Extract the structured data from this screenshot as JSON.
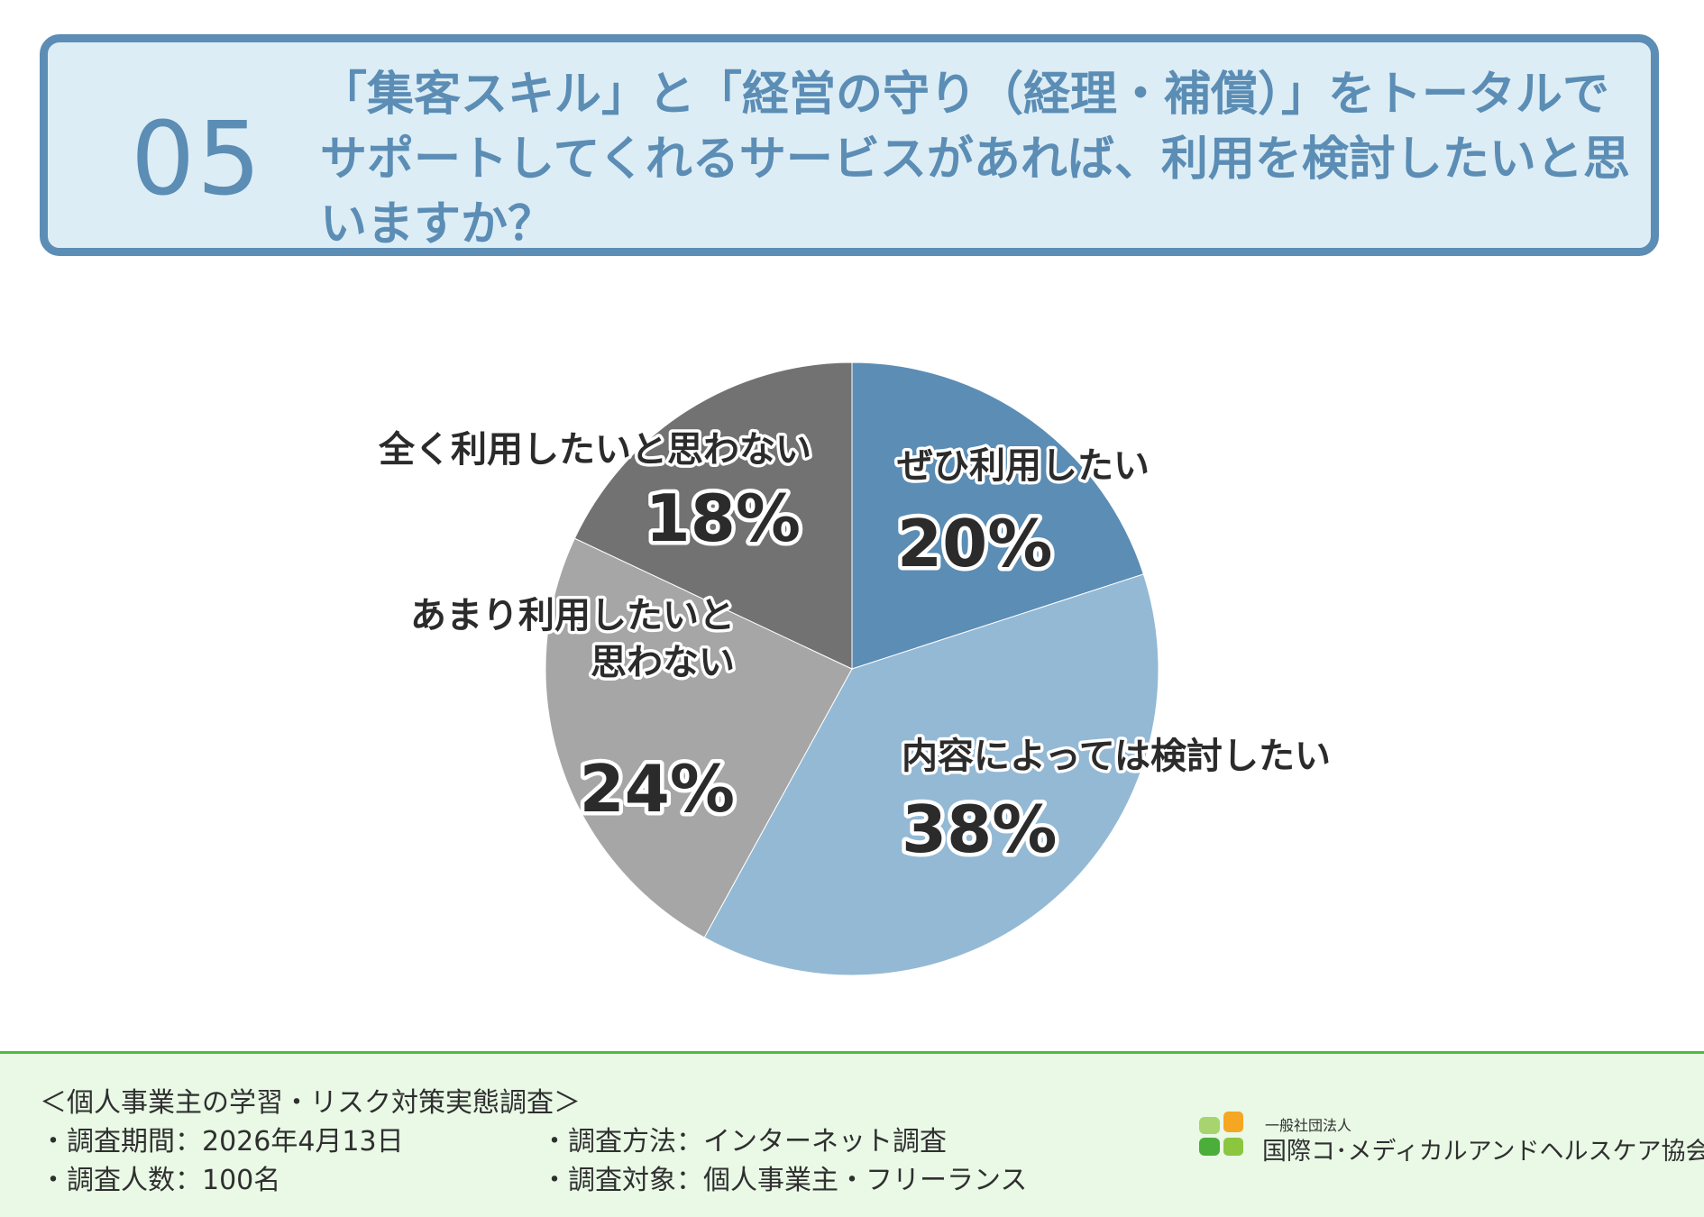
{
  "question": {
    "number": "05",
    "text": "「集客スキル」と「経営の守り（経理・補償）」をトータルでサポートしてくれるサービスがあれば、利用を検討したいと思いますか？"
  },
  "chart_data": {
    "type": "pie",
    "title": "「集客スキル」と「経営の守り（経理・補償）」をトータルでサポートしてくれるサービスがあれば、利用を検討したいと思いますか？",
    "slices": [
      {
        "label": "ぜひ利用したい",
        "label_lines": [
          "ぜひ利用したい"
        ],
        "value": 20,
        "pct_text": "20%",
        "color": "#5b8db5"
      },
      {
        "label": "内容によっては検討したい",
        "label_lines": [
          "内容によっては検討したい"
        ],
        "value": 38,
        "pct_text": "38%",
        "color": "#93b9d5"
      },
      {
        "label": "あまり利用したいと思わない",
        "label_lines": [
          "あまり利用したいと",
          "思わない"
        ],
        "value": 24,
        "pct_text": "24%",
        "color": "#a6a6a6"
      },
      {
        "label": "全く利用したいと思わない",
        "label_lines": [
          "全く利用したいと思わない"
        ],
        "value": 18,
        "pct_text": "18%",
        "color": "#727272"
      }
    ],
    "start": "12 o'clock",
    "direction": "clockwise",
    "legend": "none"
  },
  "footer": {
    "survey_title": "＜個人事業主の学習・リスク対策実態調査＞",
    "period": "・調査期間：2026年4月13日",
    "respondents": "・調査人数：100名",
    "method": "・調査方法：インターネット調査",
    "target": "・調査対象：個人事業主・フリーランス",
    "org_small": "一般社団法人",
    "org_name": "国際コ･メディカルアンドヘルスケア協会",
    "logo_colors": [
      "#f5a623",
      "#8cc63f",
      "#4cae3a",
      "#a7d46f"
    ]
  }
}
